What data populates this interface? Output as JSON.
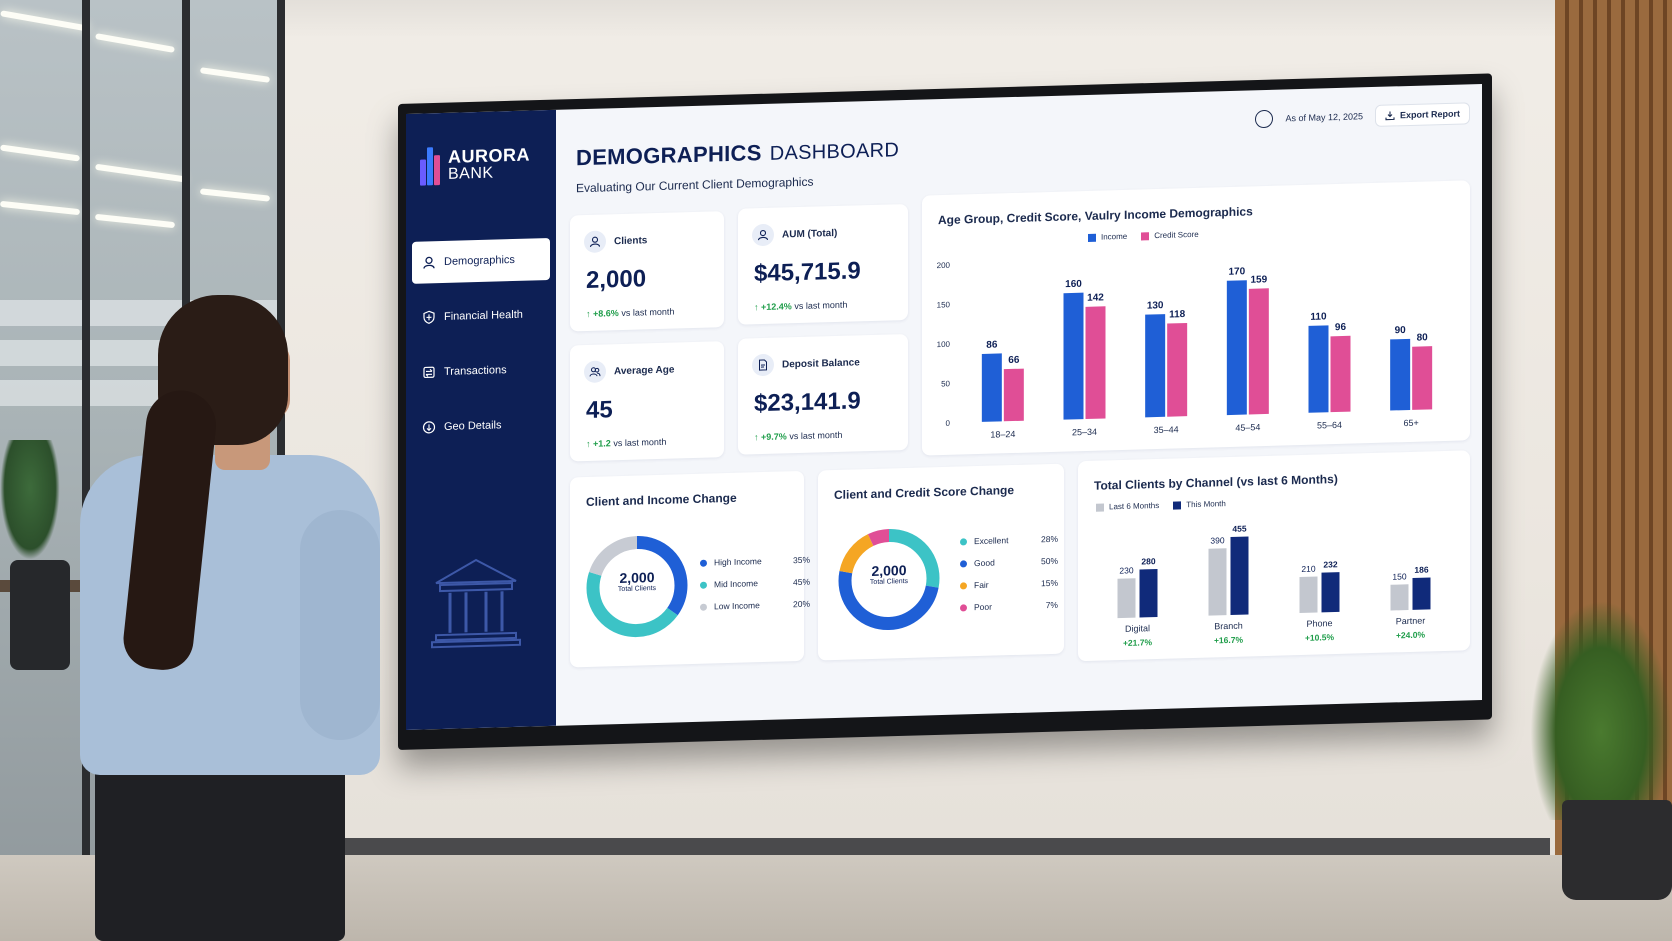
{
  "brand": {
    "name": "AURORA",
    "sub": "BANK"
  },
  "nav": [
    {
      "label": "Demographics",
      "icon": "users-icon",
      "active": true
    },
    {
      "label": "Financial Health",
      "icon": "shield-icon",
      "active": false
    },
    {
      "label": "Transactions",
      "icon": "transfer-icon",
      "active": false
    },
    {
      "label": "Geo Details",
      "icon": "location-pin-icon",
      "active": false
    }
  ],
  "header": {
    "title_bold": "DEMOGRAPHICS",
    "title_light": "DASHBOARD",
    "subtitle": "Evaluating Our Current Client Demographics",
    "date": "As of May 12, 2025",
    "export": "Export Report"
  },
  "kpis": [
    {
      "label": "Clients",
      "value": "2,000",
      "change": "+8.6%",
      "suffix": "vs last month",
      "icon": "user-icon"
    },
    {
      "label": "AUM (Total)",
      "value": "$45,715.9",
      "change": "+12.4%",
      "suffix": "vs last month",
      "icon": "user-icon"
    },
    {
      "label": "Average Age",
      "value": "45",
      "change": "+1.2",
      "suffix": "vs last month",
      "icon": "users-icon"
    },
    {
      "label": "Deposit Balance",
      "value": "$23,141.9",
      "change": "+9.7%",
      "suffix": "vs last month",
      "icon": "document-icon"
    }
  ],
  "colors": {
    "navy": "#0d1f55",
    "income": "#1f5fd6",
    "credit": "#e04e96",
    "high": "#1f5fd6",
    "mid": "#3cc3c6",
    "low": "#c7cbd3",
    "excellent": "#3cc3c6",
    "good": "#1f5fd6",
    "fair": "#f5a623",
    "poor": "#e04e96",
    "last6": "#c3c7cf",
    "thismonth": "#102a7a",
    "up": "#1f9d4a"
  },
  "chart_data": [
    {
      "type": "bar",
      "title": "Age Group, Credit Score, Vaulry Income Demographics",
      "categories": [
        "18–24",
        "25–34",
        "35–44",
        "45–54",
        "55–64",
        "65+"
      ],
      "series": [
        {
          "name": "Income",
          "values": [
            86,
            160,
            130,
            170,
            110,
            90
          ]
        },
        {
          "name": "Credit Score",
          "values": [
            66,
            142,
            118,
            159,
            96,
            80
          ]
        }
      ],
      "ylim": [
        0,
        200
      ],
      "yticks": [
        0,
        50,
        100,
        150,
        200
      ],
      "legend": "top-left",
      "grid": false
    },
    {
      "type": "pie",
      "title": "Client and Income Change",
      "center_value": "2,000",
      "center_label": "Total Clients",
      "slices": [
        {
          "name": "High Income",
          "value": 35,
          "label": "35%"
        },
        {
          "name": "Mid Income",
          "value": 45,
          "label": "45%"
        },
        {
          "name": "Low Income",
          "value": 20,
          "label": "20%"
        }
      ]
    },
    {
      "type": "pie",
      "title": "Client and Credit Score Change",
      "center_value": "2,000",
      "center_label": "Total Clients",
      "slices": [
        {
          "name": "Excellent",
          "value": 28,
          "label": "28%"
        },
        {
          "name": "Good",
          "value": 50,
          "label": "50%"
        },
        {
          "name": "Fair",
          "value": 15,
          "label": "15%"
        },
        {
          "name": "Poor",
          "value": 7,
          "label": "7%"
        }
      ]
    },
    {
      "type": "bar",
      "title": "Total Clients by Channel (vs last 6 Months)",
      "categories": [
        "Digital",
        "Branch",
        "Phone",
        "Partner"
      ],
      "series": [
        {
          "name": "Last 6 Months",
          "values": [
            230,
            390,
            210,
            150
          ]
        },
        {
          "name": "This Month",
          "values": [
            280,
            455,
            232,
            186
          ]
        }
      ],
      "changes": [
        "+21.7%",
        "+16.7%",
        "+10.5%",
        "+24.0%"
      ],
      "legend": "top-left",
      "grid": false
    }
  ]
}
